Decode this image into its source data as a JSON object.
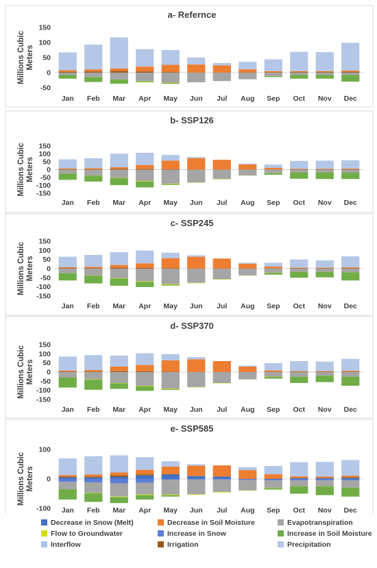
{
  "colors": {
    "Decrease in Snow (Melt)": "#4472c4",
    "Decrease in Soil Moisture": "#ed7d31",
    "Evapotranspiration": "#a5a5a5",
    "Flow to Groundwater": "#d4dc16",
    "Increase in Snow": "#5b7fd6",
    "Increase in Soil Moisture": "#70ad47",
    "Interflow": "#a9c4e8",
    "Irrigation": "#9c5a1b",
    "Precipitation": "#b4c7e7",
    "Increase in Soil Moisture (green)": "#5aa845"
  },
  "legend": {
    "items": [
      {
        "label": "Decrease in Snow (Melt)",
        "color": "#4472c4"
      },
      {
        "label": "Decrease in Soil Moisture",
        "color": "#ed7d31"
      },
      {
        "label": "Evapotranspiration",
        "color": "#a5a5a5"
      },
      {
        "label": "Flow to Groundwater",
        "color": "#d4dc16"
      },
      {
        "label": "Increase in Snow",
        "color": "#5b7fd6"
      },
      {
        "label": "Increase in Soil Moisture",
        "color": "#70ad47"
      },
      {
        "label": "Interflow",
        "color": "#a9c4e8"
      },
      {
        "label": "Irrigation",
        "color": "#9c5a1b"
      },
      {
        "label": "Precipitation",
        "color": "#b4c7e7"
      }
    ]
  },
  "chart_data": [
    {
      "type": "bar",
      "title": "a- Refernce",
      "ylabel": "Millions Cubic Meters",
      "ylim": [
        -50,
        150
      ],
      "yticks": [
        -50,
        0,
        50,
        100,
        150
      ],
      "categories": [
        "Jan",
        "Feb",
        "Mar",
        "Apr",
        "May",
        "Jun",
        "Jul",
        "Aug",
        "Sep",
        "Oct",
        "Nov",
        "Dec"
      ],
      "positive": [
        {
          "name": "Irrigation",
          "values": [
            3,
            4,
            6,
            4,
            2,
            0,
            0,
            0,
            1,
            2,
            2,
            3
          ]
        },
        {
          "name": "Decrease in Soil Moisture",
          "values": [
            5,
            7,
            8,
            16,
            24,
            27,
            24,
            11,
            4,
            3,
            3,
            4
          ]
        },
        {
          "name": "Interflow",
          "values": [
            0,
            0,
            0,
            0,
            0,
            0,
            0,
            0,
            0,
            0,
            0,
            0
          ]
        },
        {
          "name": "Precipitation",
          "values": [
            59,
            82,
            103,
            58,
            49,
            23,
            8,
            25,
            39,
            64,
            63,
            92
          ]
        }
      ],
      "negative": [
        {
          "name": "Evapotranspiration",
          "values": [
            -8,
            -15,
            -23,
            -28,
            -33,
            -32,
            -28,
            -22,
            -12,
            -8,
            -8,
            -8
          ]
        },
        {
          "name": "Flow to Groundwater",
          "values": [
            0,
            0,
            0,
            -1,
            -1,
            0,
            0,
            0,
            0,
            0,
            0,
            0
          ]
        },
        {
          "name": "Increase in Soil Moisture",
          "values": [
            -12,
            -16,
            -14,
            -3,
            -3,
            0,
            0,
            0,
            -3,
            -12,
            -12,
            -22
          ]
        }
      ]
    },
    {
      "type": "bar",
      "title": "b- SSP126",
      "ylabel": "Millions Cubic Meters",
      "ylim": [
        -150,
        150
      ],
      "yticks": [
        -150,
        -100,
        -50,
        0,
        50,
        100,
        150
      ],
      "categories": [
        "Jan",
        "Feb",
        "Mar",
        "Apr",
        "May",
        "Jun",
        "Jul",
        "Aug",
        "Sep",
        "Oct",
        "Nov",
        "Dec"
      ],
      "positive": [
        {
          "name": "Irrigation",
          "values": [
            3,
            3,
            5,
            4,
            2,
            0,
            0,
            0,
            1,
            2,
            2,
            3
          ]
        },
        {
          "name": "Decrease in Soil Moisture",
          "values": [
            5,
            7,
            10,
            25,
            55,
            72,
            62,
            33,
            10,
            3,
            3,
            4
          ]
        },
        {
          "name": "Interflow",
          "values": [
            0,
            0,
            0,
            0,
            0,
            0,
            0,
            0,
            0,
            0,
            0,
            0
          ]
        },
        {
          "name": "Precipitation",
          "values": [
            57,
            62,
            86,
            78,
            36,
            8,
            0,
            5,
            21,
            50,
            52,
            52
          ]
        }
      ],
      "negative": [
        {
          "name": "Evapotranspiration",
          "values": [
            -25,
            -37,
            -52,
            -72,
            -90,
            -82,
            -60,
            -38,
            -22,
            -18,
            -18,
            -20
          ]
        },
        {
          "name": "Flow to Groundwater",
          "values": [
            0,
            -1,
            -2,
            -3,
            -3,
            -2,
            -2,
            -1,
            -1,
            0,
            0,
            0
          ]
        },
        {
          "name": "Increase in Soil Moisture",
          "values": [
            -40,
            -38,
            -45,
            -38,
            -5,
            0,
            0,
            0,
            -10,
            -40,
            -42,
            -40
          ]
        }
      ]
    },
    {
      "type": "bar",
      "title": "c- SSP245",
      "ylabel": "Millions Cubic Meters",
      "ylim": [
        -150,
        150
      ],
      "yticks": [
        -150,
        -100,
        -50,
        0,
        50,
        100,
        150
      ],
      "categories": [
        "Jan",
        "Feb",
        "Mar",
        "Apr",
        "May",
        "Jun",
        "Jul",
        "Aug",
        "Sep",
        "Oct",
        "Nov",
        "Dec"
      ],
      "positive": [
        {
          "name": "Irrigation",
          "values": [
            3,
            3,
            5,
            4,
            2,
            0,
            0,
            0,
            1,
            2,
            2,
            3
          ]
        },
        {
          "name": "Decrease in Soil Moisture",
          "values": [
            5,
            7,
            15,
            25,
            55,
            65,
            55,
            27,
            10,
            3,
            3,
            4
          ]
        },
        {
          "name": "Interflow",
          "values": [
            0,
            0,
            0,
            0,
            0,
            0,
            0,
            0,
            0,
            0,
            0,
            0
          ]
        },
        {
          "name": "Precipitation",
          "values": [
            57,
            65,
            70,
            70,
            30,
            8,
            0,
            5,
            21,
            45,
            40,
            60
          ]
        }
      ],
      "negative": [
        {
          "name": "Evapotranspiration",
          "values": [
            -25,
            -38,
            -52,
            -70,
            -85,
            -78,
            -58,
            -38,
            -22,
            -18,
            -18,
            -20
          ]
        },
        {
          "name": "Flow to Groundwater",
          "values": [
            0,
            -1,
            -2,
            -3,
            -3,
            -2,
            -2,
            -1,
            -1,
            0,
            0,
            0
          ]
        },
        {
          "name": "Increase in Soil Moisture",
          "values": [
            -40,
            -42,
            -40,
            -28,
            -5,
            0,
            0,
            0,
            -10,
            -32,
            -30,
            -45
          ]
        }
      ]
    },
    {
      "type": "bar",
      "title": "d- SSP370",
      "ylabel": "Millions Cubic Meters",
      "ylim": [
        -150,
        150
      ],
      "yticks": [
        -150,
        -100,
        -50,
        0,
        50,
        100,
        150
      ],
      "categories": [
        "Jan",
        "Feb",
        "Mar",
        "Apr",
        "May",
        "Jun",
        "Jul",
        "Aug",
        "Sep",
        "Oct",
        "Nov",
        "Dec"
      ],
      "positive": [
        {
          "name": "Irrigation",
          "values": [
            3,
            3,
            5,
            4,
            2,
            0,
            0,
            0,
            1,
            2,
            2,
            3
          ]
        },
        {
          "name": "Decrease in Soil Moisture",
          "values": [
            5,
            8,
            25,
            35,
            62,
            70,
            60,
            30,
            8,
            3,
            3,
            4
          ]
        },
        {
          "name": "Interflow",
          "values": [
            0,
            0,
            0,
            0,
            0,
            0,
            0,
            0,
            0,
            0,
            0,
            0
          ]
        },
        {
          "name": "Precipitation",
          "values": [
            77,
            82,
            60,
            64,
            34,
            12,
            0,
            5,
            40,
            55,
            52,
            65
          ]
        }
      ],
      "negative": [
        {
          "name": "Evapotranspiration",
          "values": [
            -30,
            -40,
            -60,
            -75,
            -90,
            -82,
            -60,
            -40,
            -25,
            -25,
            -20,
            -25
          ]
        },
        {
          "name": "Flow to Groundwater",
          "values": [
            0,
            -2,
            -2,
            -3,
            -3,
            -2,
            -2,
            -1,
            -1,
            0,
            0,
            0
          ]
        },
        {
          "name": "Increase in Soil Moisture",
          "values": [
            -55,
            -55,
            -30,
            -25,
            -5,
            0,
            0,
            0,
            -10,
            -35,
            -35,
            -50
          ]
        }
      ]
    },
    {
      "type": "bar",
      "title": "e- SSP585",
      "ylabel": "Millions Cubic Meters",
      "ylim": [
        -100,
        100
      ],
      "yticks": [
        -100,
        0,
        100
      ],
      "categories": [
        "Jan",
        "Feb",
        "Mar",
        "Apr",
        "May",
        "Jun",
        "Jul",
        "Aug",
        "Sep",
        "Oct",
        "Nov",
        "Dec"
      ],
      "positive": [
        {
          "name": "Decrease in Snow (Melt)",
          "values": [
            5,
            5,
            7,
            12,
            15,
            10,
            8,
            0,
            0,
            2,
            2,
            3
          ]
        },
        {
          "name": "Irrigation",
          "values": [
            3,
            3,
            5,
            4,
            2,
            0,
            0,
            0,
            1,
            2,
            2,
            3
          ]
        },
        {
          "name": "Decrease in Soil Moisture",
          "values": [
            5,
            7,
            10,
            15,
            25,
            35,
            38,
            30,
            15,
            5,
            4,
            5
          ]
        },
        {
          "name": "Interflow",
          "values": [
            0,
            0,
            0,
            0,
            0,
            0,
            0,
            0,
            0,
            0,
            0,
            0
          ]
        },
        {
          "name": "Precipitation",
          "values": [
            57,
            62,
            58,
            43,
            18,
            5,
            0,
            10,
            28,
            48,
            50,
            53
          ]
        }
      ],
      "negative": [
        {
          "name": "Increase in Snow",
          "values": [
            -10,
            -12,
            -15,
            -13,
            -3,
            -2,
            -2,
            -4,
            -5,
            -5,
            -5,
            -5
          ]
        },
        {
          "name": "Evapotranspiration",
          "values": [
            -25,
            -35,
            -45,
            -40,
            -50,
            -50,
            -42,
            -35,
            -25,
            -20,
            -20,
            -25
          ]
        },
        {
          "name": "Flow to Groundwater",
          "values": [
            0,
            -1,
            -2,
            -2,
            -2,
            -2,
            -2,
            -1,
            -1,
            0,
            0,
            0
          ]
        },
        {
          "name": "Increase in Soil Moisture",
          "values": [
            -35,
            -30,
            -20,
            -15,
            -5,
            0,
            0,
            0,
            -5,
            -25,
            -30,
            -30
          ]
        }
      ]
    }
  ]
}
